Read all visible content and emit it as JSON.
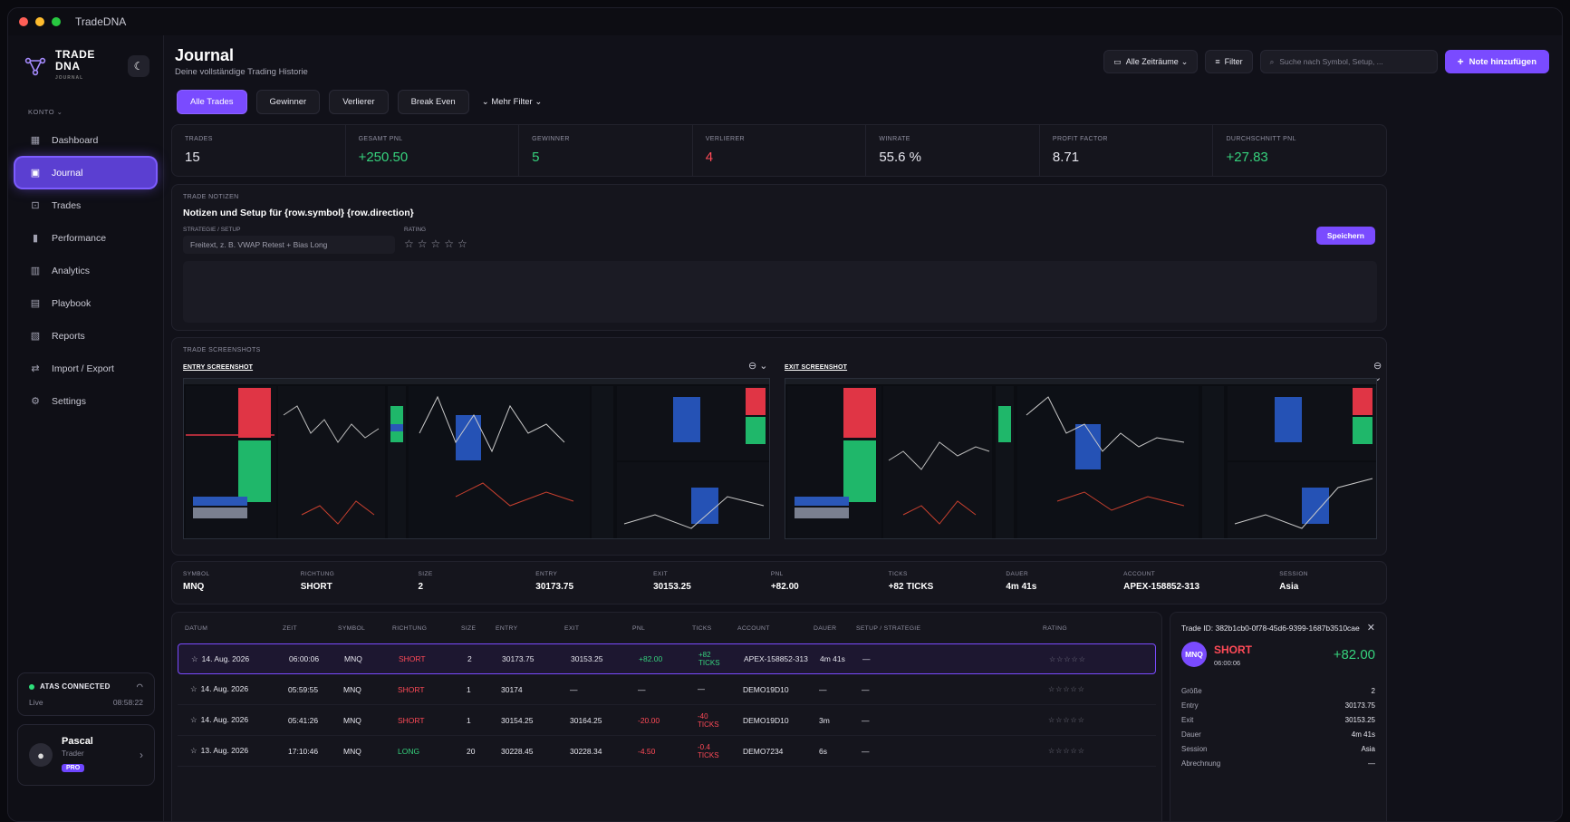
{
  "window": {
    "title": "TradeDNA"
  },
  "brand": {
    "line1": "TRADE",
    "line2": "DNA",
    "tagline": "JOURNAL"
  },
  "sidebar": {
    "section": "KONTO ⌄",
    "items": [
      {
        "label": "Dashboard",
        "icon": "grid-icon"
      },
      {
        "label": "Journal",
        "icon": "book-icon"
      },
      {
        "label": "Trades",
        "icon": "trades-icon"
      },
      {
        "label": "Performance",
        "icon": "bar-chart-icon"
      },
      {
        "label": "Analytics",
        "icon": "analytics-icon"
      },
      {
        "label": "Playbook",
        "icon": "notebook-icon"
      },
      {
        "label": "Reports",
        "icon": "report-icon"
      },
      {
        "label": "Import / Export",
        "icon": "swap-icon"
      },
      {
        "label": "Settings",
        "icon": "gear-icon"
      }
    ]
  },
  "connection": {
    "label": "ATAS CONNECTED",
    "status": "Live",
    "time": "08:58:22"
  },
  "user": {
    "name": "Pascal",
    "role": "Trader",
    "badge": "PRO"
  },
  "header": {
    "title": "Journal",
    "subtitle": "Deine vollständige Trading Historie"
  },
  "toolbar": {
    "range": "Alle Zeiträume",
    "filter": "Filter",
    "search_placeholder": "Suche nach Symbol, Setup, ...",
    "note": "Note hinzufügen"
  },
  "filters": {
    "all": "Alle Trades",
    "winners": "Gewinner",
    "losers": "Verlierer",
    "breakeven": "Break Even",
    "more": "Mehr Filter"
  },
  "stats": [
    {
      "label": "TRADES",
      "value": "15"
    },
    {
      "label": "GESAMT PNL",
      "value": "+250.50"
    },
    {
      "label": "GEWINNER",
      "value": "5"
    },
    {
      "label": "VERLIERER",
      "value": "4"
    },
    {
      "label": "WINRATE",
      "value": "55.6 %"
    },
    {
      "label": "PROFIT FACTOR",
      "value": "8.71"
    },
    {
      "label": "DURCHSCHNITT PNL",
      "value": "+27.83"
    }
  ],
  "notes": {
    "title": "TRADE NOTIZEN",
    "heading": "Notizen und Setup für {row.symbol} {row.direction}",
    "strategy_label": "STRATEGIE / SETUP",
    "strategy_placeholder": "Freitext, z. B. VWAP Retest + Bias Long",
    "rating_label": "RATING",
    "rating_stars": "☆☆☆☆☆",
    "save": "Speichern"
  },
  "screenshots": {
    "title": "TRADE SCREENSHOTS",
    "entry": "ENTRY SCREENSHOT",
    "exit": "EXIT SCREENSHOT"
  },
  "summary": [
    {
      "label": "SYMBOL",
      "value": "MNQ"
    },
    {
      "label": "RICHTUNG",
      "value": "SHORT"
    },
    {
      "label": "SIZE",
      "value": "2"
    },
    {
      "label": "ENTRY",
      "value": "30173.75"
    },
    {
      "label": "EXIT",
      "value": "30153.25"
    },
    {
      "label": "PNL",
      "value": "+82.00"
    },
    {
      "label": "TICKS",
      "value": "+82 TICKS"
    },
    {
      "label": "DAUER",
      "value": "4m 41s"
    },
    {
      "label": "ACCOUNT",
      "value": "APEX-158852-313"
    },
    {
      "label": "SESSION",
      "value": "Asia"
    }
  ],
  "table": {
    "headers": [
      "DATUM",
      "ZEIT",
      "SYMBOL",
      "RICHTUNG",
      "SIZE",
      "ENTRY",
      "EXIT",
      "PNL",
      "TICKS",
      "ACCOUNT",
      "DAUER",
      "SETUP / STRATEGIE",
      "RATING"
    ],
    "rows": [
      {
        "datum": "14. Aug. 2026",
        "zeit": "06:00:06",
        "symbol": "MNQ",
        "richtung": "SHORT",
        "size": "2",
        "entry": "30173.75",
        "exit": "30153.25",
        "pnl": "+82.00",
        "ticks1": "+82",
        "ticks2": "TICKS",
        "account": "APEX-158852-313",
        "dauer": "4m 41s",
        "setup": "—",
        "rating": "☆☆☆☆☆"
      },
      {
        "datum": "14. Aug. 2026",
        "zeit": "05:59:55",
        "symbol": "MNQ",
        "richtung": "SHORT",
        "size": "1",
        "entry": "30174",
        "exit": "—",
        "pnl": "—",
        "ticks1": "—",
        "ticks2": "",
        "account": "DEMO19D10",
        "dauer": "—",
        "setup": "—",
        "rating": "☆☆☆☆☆"
      },
      {
        "datum": "14. Aug. 2026",
        "zeit": "05:41:26",
        "symbol": "MNQ",
        "richtung": "SHORT",
        "size": "1",
        "entry": "30154.25",
        "exit": "30164.25",
        "pnl": "-20.00",
        "ticks1": "-40",
        "ticks2": "TICKS",
        "account": "DEMO19D10",
        "dauer": "3m",
        "setup": "—",
        "rating": "☆☆☆☆☆"
      },
      {
        "datum": "13. Aug. 2026",
        "zeit": "17:10:46",
        "symbol": "MNQ",
        "richtung": "LONG",
        "size": "20",
        "entry": "30228.45",
        "exit": "30228.34",
        "pnl": "-4.50",
        "ticks1": "-0.4",
        "ticks2": "TICKS",
        "account": "DEMO7234",
        "dauer": "6s",
        "setup": "—",
        "rating": "☆☆☆☆☆"
      }
    ]
  },
  "detail": {
    "trade_id": "Trade ID: 382b1cb0-0f78-45d6-9399-1687b3510cae",
    "symbol": "MNQ",
    "direction": "SHORT",
    "time": "06:00:06",
    "pnl": "+82.00",
    "rows": [
      {
        "k": "Größe",
        "v": "2"
      },
      {
        "k": "Entry",
        "v": "30173.75"
      },
      {
        "k": "Exit",
        "v": "30153.25"
      },
      {
        "k": "Dauer",
        "v": "4m 41s"
      },
      {
        "k": "Session",
        "v": "Asia"
      },
      {
        "k": "Abrechnung",
        "v": "—"
      }
    ]
  },
  "colors": {
    "accent": "#7a4bff",
    "positive": "#36d27d",
    "negative": "#ff4a57",
    "background": "#111119"
  }
}
